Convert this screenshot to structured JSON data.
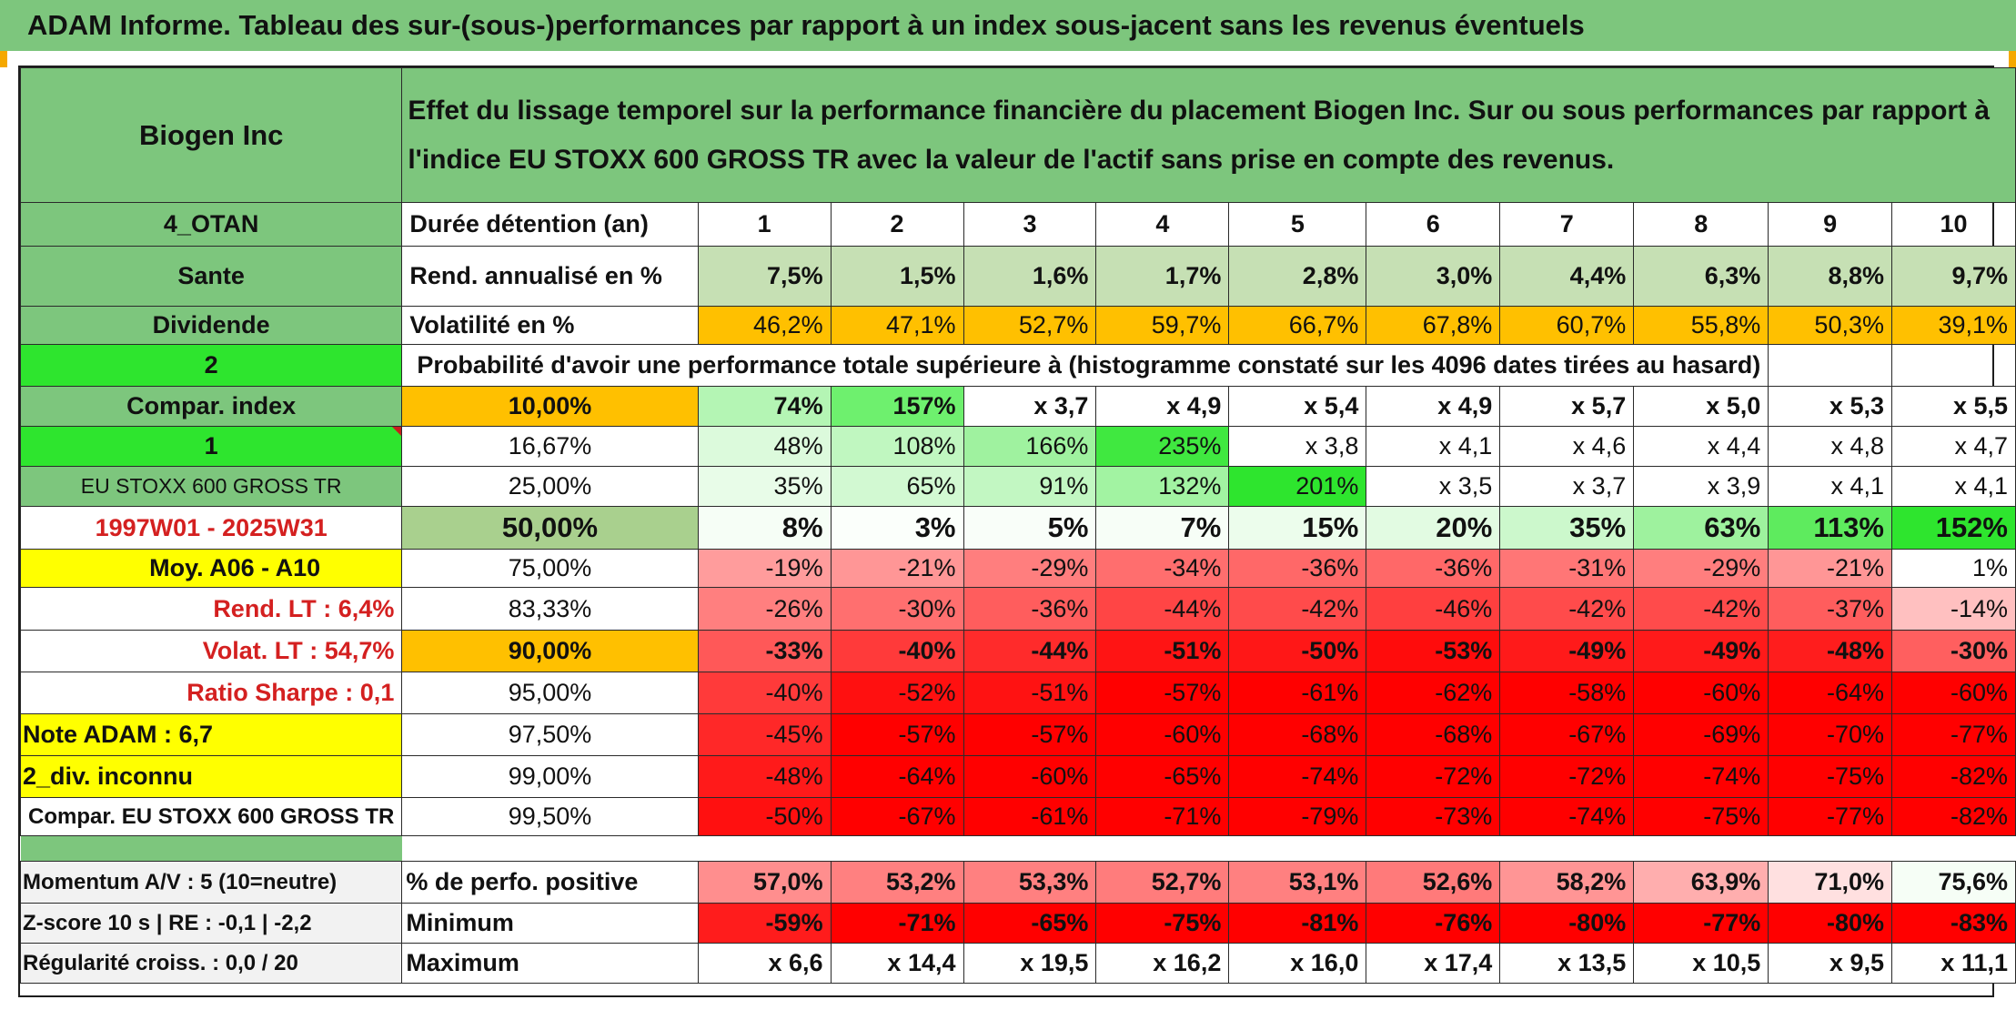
{
  "title": "ADAM Informe. Tableau des sur-(sous-)performances par rapport à un index sous-jacent sans les revenus éventuels",
  "header": {
    "company": "Biogen Inc",
    "description_line1": "Effet du lissage temporel sur la performance financière du placement Biogen Inc. Sur ou sous performances par rapport à",
    "description_line2": "l'indice EU STOXX 600 GROSS TR avec la valeur de l'actif sans prise en compte des revenus."
  },
  "left_labels": {
    "category": "4_OTAN",
    "sector": "Sante",
    "dividend": "Dividende",
    "count": "2",
    "compar_index": "Compar. index",
    "one": "1",
    "index_name": "EU STOXX 600 GROSS TR",
    "period": "1997W01 - 2025W31",
    "moy": "Moy. A06 - A10",
    "rend_lt": "Rend. LT :   6,4%",
    "volat_lt": "Volat. LT :   54,7%",
    "sharpe": "Ratio Sharpe :   0,1",
    "note": "Note ADAM : 6,7",
    "div_unknown": "2_div. inconnu",
    "compar_full": "Compar. EU STOXX 600 GROSS TR"
  },
  "row_labels": {
    "duration": "Durée détention (an)",
    "annual_return": "Rend. annualisé en %",
    "volatility": "Volatilité en %",
    "probability": "Probabilité d'avoir une performance totale supérieure à (histogramme constaté sur les 4096 dates tirées au hasard)"
  },
  "years": [
    "1",
    "2",
    "3",
    "4",
    "5",
    "6",
    "7",
    "8",
    "9",
    "10"
  ],
  "annual_returns": [
    "7,5%",
    "1,5%",
    "1,6%",
    "1,7%",
    "2,8%",
    "3,0%",
    "4,4%",
    "6,3%",
    "8,8%",
    "9,7%"
  ],
  "volatilities": [
    "46,2%",
    "47,1%",
    "52,7%",
    "59,7%",
    "66,7%",
    "67,8%",
    "60,7%",
    "55,8%",
    "50,3%",
    "39,1%"
  ],
  "percentile_rows": [
    {
      "pct": "10,00%",
      "values": [
        "74%",
        "157%",
        "x 3,7",
        "x 4,9",
        "x 5,4",
        "x 4,9",
        "x 5,7",
        "x 5,0",
        "x 5,3",
        "x 5,5"
      ]
    },
    {
      "pct": "16,67%",
      "values": [
        "48%",
        "108%",
        "166%",
        "235%",
        "x 3,8",
        "x 4,1",
        "x 4,6",
        "x 4,4",
        "x 4,8",
        "x 4,7"
      ]
    },
    {
      "pct": "25,00%",
      "values": [
        "35%",
        "65%",
        "91%",
        "132%",
        "201%",
        "x 3,5",
        "x 3,7",
        "x 3,9",
        "x 4,1",
        "x 4,1"
      ]
    },
    {
      "pct": "50,00%",
      "values": [
        "8%",
        "3%",
        "5%",
        "7%",
        "15%",
        "20%",
        "35%",
        "63%",
        "113%",
        "152%"
      ]
    },
    {
      "pct": "75,00%",
      "values": [
        "-19%",
        "-21%",
        "-29%",
        "-34%",
        "-36%",
        "-36%",
        "-31%",
        "-29%",
        "-21%",
        "1%"
      ]
    },
    {
      "pct": "83,33%",
      "values": [
        "-26%",
        "-30%",
        "-36%",
        "-44%",
        "-42%",
        "-46%",
        "-42%",
        "-42%",
        "-37%",
        "-14%"
      ]
    },
    {
      "pct": "90,00%",
      "values": [
        "-33%",
        "-40%",
        "-44%",
        "-51%",
        "-50%",
        "-53%",
        "-49%",
        "-49%",
        "-48%",
        "-30%"
      ]
    },
    {
      "pct": "95,00%",
      "values": [
        "-40%",
        "-52%",
        "-51%",
        "-57%",
        "-61%",
        "-62%",
        "-58%",
        "-60%",
        "-64%",
        "-60%"
      ]
    },
    {
      "pct": "97,50%",
      "values": [
        "-45%",
        "-57%",
        "-57%",
        "-60%",
        "-68%",
        "-68%",
        "-67%",
        "-69%",
        "-70%",
        "-77%"
      ]
    },
    {
      "pct": "99,00%",
      "values": [
        "-48%",
        "-64%",
        "-60%",
        "-65%",
        "-74%",
        "-72%",
        "-72%",
        "-74%",
        "-75%",
        "-82%"
      ]
    },
    {
      "pct": "99,50%",
      "values": [
        "-50%",
        "-67%",
        "-61%",
        "-71%",
        "-79%",
        "-73%",
        "-74%",
        "-75%",
        "-77%",
        "-82%"
      ]
    }
  ],
  "bottom": {
    "momentum_label": "Momentum A/V : 5 (10=neutre)",
    "zscore_label": "Z-score 10 s | RE : -0,1 | -2,2",
    "regularity_label": "Régularité croiss. : 0,0 / 20",
    "positive_label": "% de perfo. positive",
    "minimum_label": "Minimum",
    "maximum_label": "Maximum",
    "positive": [
      "57,0%",
      "53,2%",
      "53,3%",
      "52,7%",
      "53,1%",
      "52,6%",
      "58,2%",
      "63,9%",
      "71,0%",
      "75,6%"
    ],
    "minimum": [
      "-59%",
      "-71%",
      "-65%",
      "-75%",
      "-81%",
      "-76%",
      "-80%",
      "-77%",
      "-80%",
      "-83%"
    ],
    "maximum": [
      "x 6,6",
      "x 14,4",
      "x 19,5",
      "x 16,2",
      "x 16,0",
      "x 17,4",
      "x 13,5",
      "x 10,5",
      "x 9,5",
      "x 11,1"
    ]
  },
  "colors": {
    "header_green": "#7dc67d",
    "bright_green": "#2ee52e",
    "orange": "#ffc000",
    "yellow": "#ffff00",
    "red": "#ff0000",
    "label_red": "#d42020"
  }
}
